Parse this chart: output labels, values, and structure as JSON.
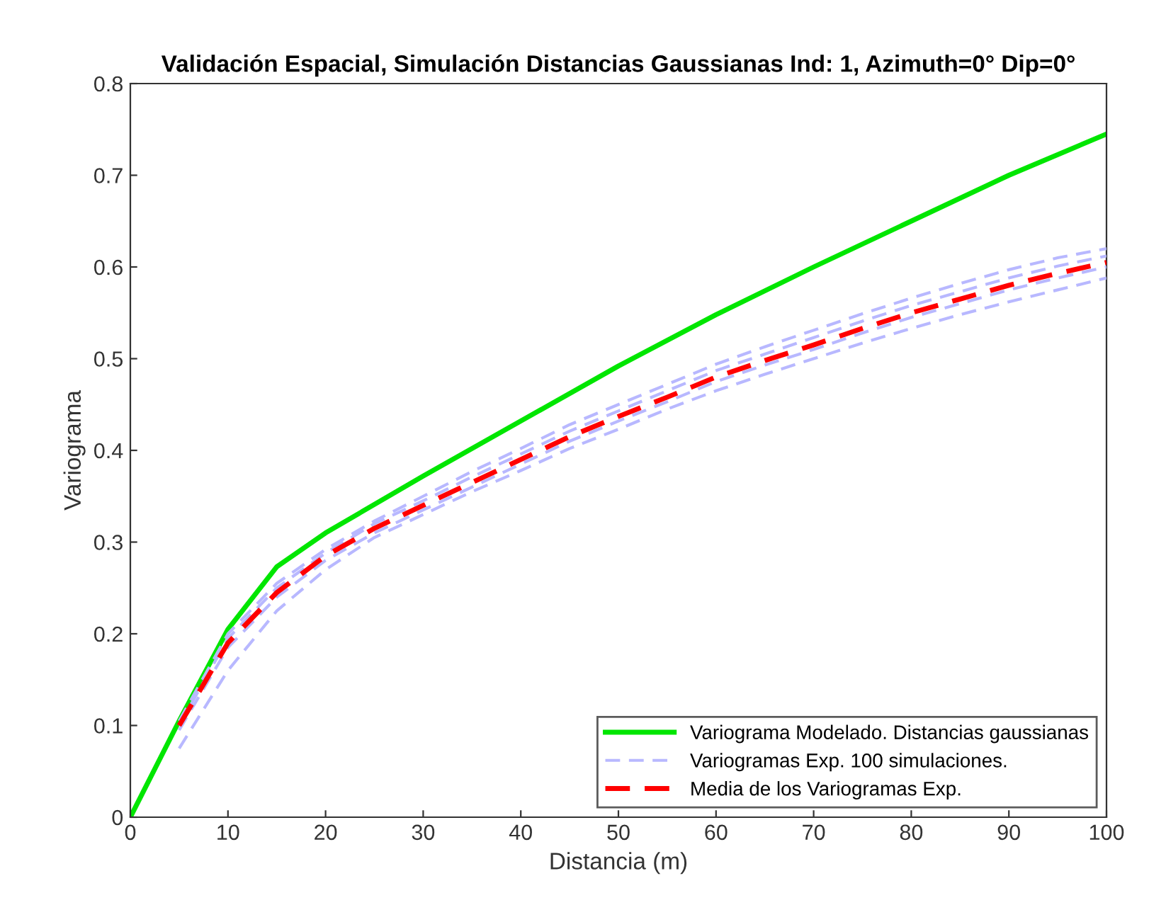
{
  "chart_data": {
    "type": "line",
    "title": "Validación Espacial, Simulación Distancias Gaussianas Ind: 1, Azimuth=0° Dip=0°",
    "xlabel": "Distancia (m)",
    "ylabel": "Variograma",
    "xlim": [
      0,
      100
    ],
    "xticks": [
      0,
      10,
      20,
      30,
      40,
      50,
      60,
      70,
      80,
      90,
      100
    ],
    "ylim": [
      0,
      0.8
    ],
    "yticks": [
      0,
      0.1,
      0.2,
      0.3,
      0.4,
      0.5,
      0.6,
      0.7,
      0.8
    ],
    "grid": false,
    "legend": "bottom right",
    "series": [
      {
        "name": "Variograma Modelado. Distancias gaussianas",
        "color": "#00e600",
        "line_style": "solid",
        "x": [
          0,
          5,
          10,
          15,
          20,
          30,
          40,
          50,
          60,
          70,
          80,
          90,
          100
        ],
        "values": [
          0,
          0.105,
          0.205,
          0.273,
          0.31,
          0.372,
          0.432,
          0.492,
          0.548,
          0.6,
          0.65,
          0.7,
          0.745
        ]
      },
      {
        "name": "Variogramas Exp. 100 simulaciones.",
        "color": "#b8b8ff",
        "line_style": "dashed",
        "x": [
          5,
          10,
          15,
          20,
          25,
          30,
          35,
          40,
          45,
          50,
          55,
          60,
          65,
          70,
          75,
          80,
          85,
          90,
          95,
          100
        ],
        "values": [
          0.075,
          0.16,
          0.225,
          0.27,
          0.305,
          0.33,
          0.355,
          0.378,
          0.402,
          0.423,
          0.445,
          0.465,
          0.483,
          0.5,
          0.517,
          0.533,
          0.548,
          0.562,
          0.575,
          0.588
        ]
      },
      {
        "color": "#b8b8ff",
        "line_style": "dashed",
        "x": [
          5,
          10,
          15,
          20,
          25,
          30,
          35,
          40,
          45,
          50,
          55,
          60,
          65,
          70,
          75,
          80,
          85,
          90,
          95,
          100
        ],
        "values": [
          0.095,
          0.185,
          0.24,
          0.28,
          0.31,
          0.335,
          0.36,
          0.385,
          0.41,
          0.432,
          0.453,
          0.475,
          0.493,
          0.51,
          0.528,
          0.545,
          0.56,
          0.575,
          0.588,
          0.6
        ]
      },
      {
        "color": "#b8b8ff",
        "line_style": "dashed",
        "x": [
          5,
          10,
          15,
          20,
          25,
          30,
          35,
          40,
          45,
          50,
          55,
          60,
          65,
          70,
          75,
          80,
          85,
          90,
          95,
          100
        ],
        "values": [
          0.1,
          0.195,
          0.25,
          0.288,
          0.32,
          0.345,
          0.371,
          0.396,
          0.421,
          0.443,
          0.465,
          0.487,
          0.505,
          0.523,
          0.541,
          0.558,
          0.573,
          0.588,
          0.601,
          0.612
        ]
      },
      {
        "color": "#b8b8ff",
        "line_style": "dashed",
        "x": [
          5,
          10,
          15,
          20,
          25,
          30,
          35,
          40,
          45,
          50,
          55,
          60,
          65,
          70,
          75,
          80,
          85,
          90,
          95,
          100
        ],
        "values": [
          0.105,
          0.2,
          0.255,
          0.292,
          0.323,
          0.35,
          0.377,
          0.402,
          0.428,
          0.45,
          0.472,
          0.494,
          0.513,
          0.531,
          0.549,
          0.566,
          0.582,
          0.597,
          0.61,
          0.62
        ]
      },
      {
        "name": "Media de los Variogramas Exp.",
        "color": "#ff0000",
        "line_style": "dashed",
        "x": [
          5,
          10,
          15,
          20,
          25,
          30,
          35,
          40,
          45,
          50,
          55,
          60,
          65,
          70,
          75,
          80,
          85,
          90,
          95,
          100
        ],
        "values": [
          0.1,
          0.19,
          0.245,
          0.285,
          0.315,
          0.34,
          0.365,
          0.39,
          0.415,
          0.437,
          0.458,
          0.48,
          0.498,
          0.515,
          0.533,
          0.55,
          0.565,
          0.58,
          0.593,
          0.605
        ]
      }
    ]
  }
}
